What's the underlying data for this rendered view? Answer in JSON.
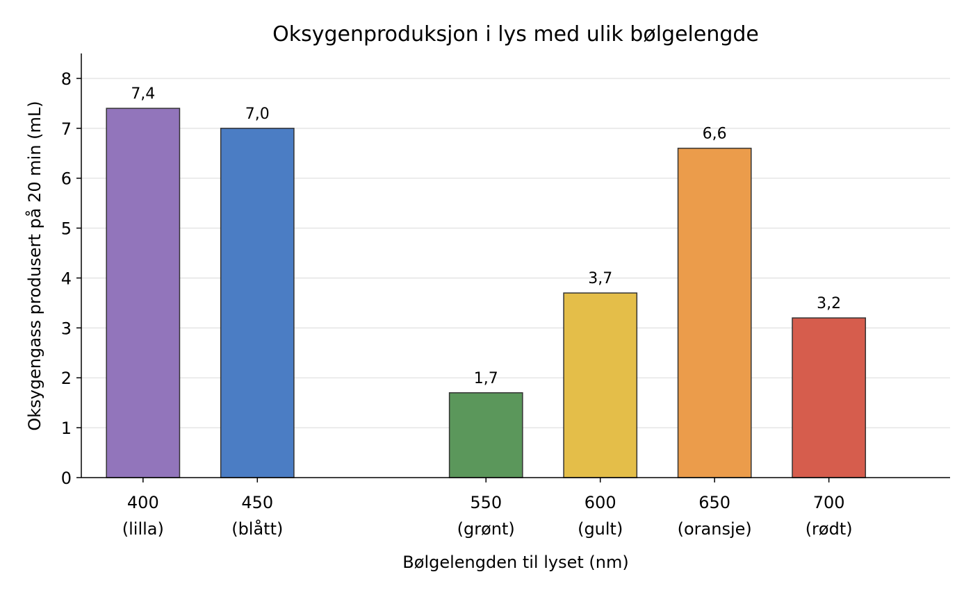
{
  "chart_data": {
    "type": "bar",
    "title": "Oksygenproduksjon i lys med ulik bølgelengde",
    "xlabel": "Bølgelengden til lyset (nm)",
    "ylabel": "Oksygengass produsert på 20 min (mL)",
    "x": [
      400,
      450,
      550,
      600,
      650,
      700
    ],
    "categories": [
      "400\n(lilla)",
      "450\n(blått)",
      "550\n(grønt)",
      "600\n(gult)",
      "650\n(oransje)",
      "700\n(rødt)"
    ],
    "tick_lines": [
      [
        "400",
        "(lilla)"
      ],
      [
        "450",
        "(blått)"
      ],
      [
        "550",
        "(grønt)"
      ],
      [
        "600",
        "(gult)"
      ],
      [
        "650",
        "(oransje)"
      ],
      [
        "700",
        "(rødt)"
      ]
    ],
    "values": [
      7.4,
      7.0,
      1.7,
      3.7,
      6.6,
      3.2
    ],
    "value_labels": [
      "7,4",
      "7,0",
      "1,7",
      "3,7",
      "6,6",
      "3,2"
    ],
    "colors": [
      "#9275bb",
      "#4b7dc4",
      "#5b975b",
      "#e4be49",
      "#eb9c4b",
      "#d65d4d"
    ],
    "ylim": [
      0,
      8.5
    ],
    "yticks": [
      0,
      1,
      2,
      3,
      4,
      5,
      6,
      7,
      8
    ],
    "xlim": [
      373,
      753
    ],
    "bar_width": 32,
    "grid": "y"
  }
}
